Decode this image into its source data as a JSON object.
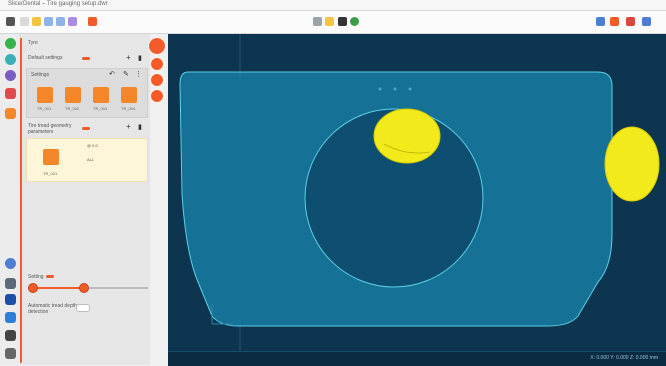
{
  "window": {
    "title": "SlicerDental – Tire gauging setup.dwr"
  },
  "toolbar": {
    "left_icons": [
      "menu-icon",
      "folder-icon",
      "star-icon",
      "box-icon",
      "grid-icon",
      "list-icon",
      "flag-icon"
    ],
    "center_icons": [
      "layout-icon",
      "edit-icon",
      "play-icon",
      "globe-icon"
    ],
    "right_icons": [
      "settings-icon",
      "tool-icon",
      "close-icon",
      "maximize-icon"
    ]
  },
  "sidebar": {
    "icons": [
      "whatsapp-icon",
      "chat-icon",
      "user-icon",
      "tools-icon",
      "pen-icon",
      "globe-icon",
      "layers-icon",
      "square-icon",
      "link-icon",
      "message-icon",
      "cross-icon"
    ]
  },
  "panel": {
    "header": "Tyre",
    "section1_label": "Default settings",
    "settings_label": "Settings",
    "thumbnails": [
      {
        "label": "TR_001"
      },
      {
        "label": "TR_002"
      },
      {
        "label": "TR_003"
      },
      {
        "label": "TR_004"
      }
    ],
    "section2_label": "Tire tread geometry parameters",
    "selected_item": {
      "label": "TR_001",
      "info1": "@ 0.0",
      "info2": "ALL"
    },
    "slider_label": "Setting",
    "slider_value": 0.45,
    "toggle_label": "Automatic tread depth detection"
  },
  "statusbar": {
    "text": "X: 0.000   Y: 0.000   Z: 0.000   mm"
  }
}
